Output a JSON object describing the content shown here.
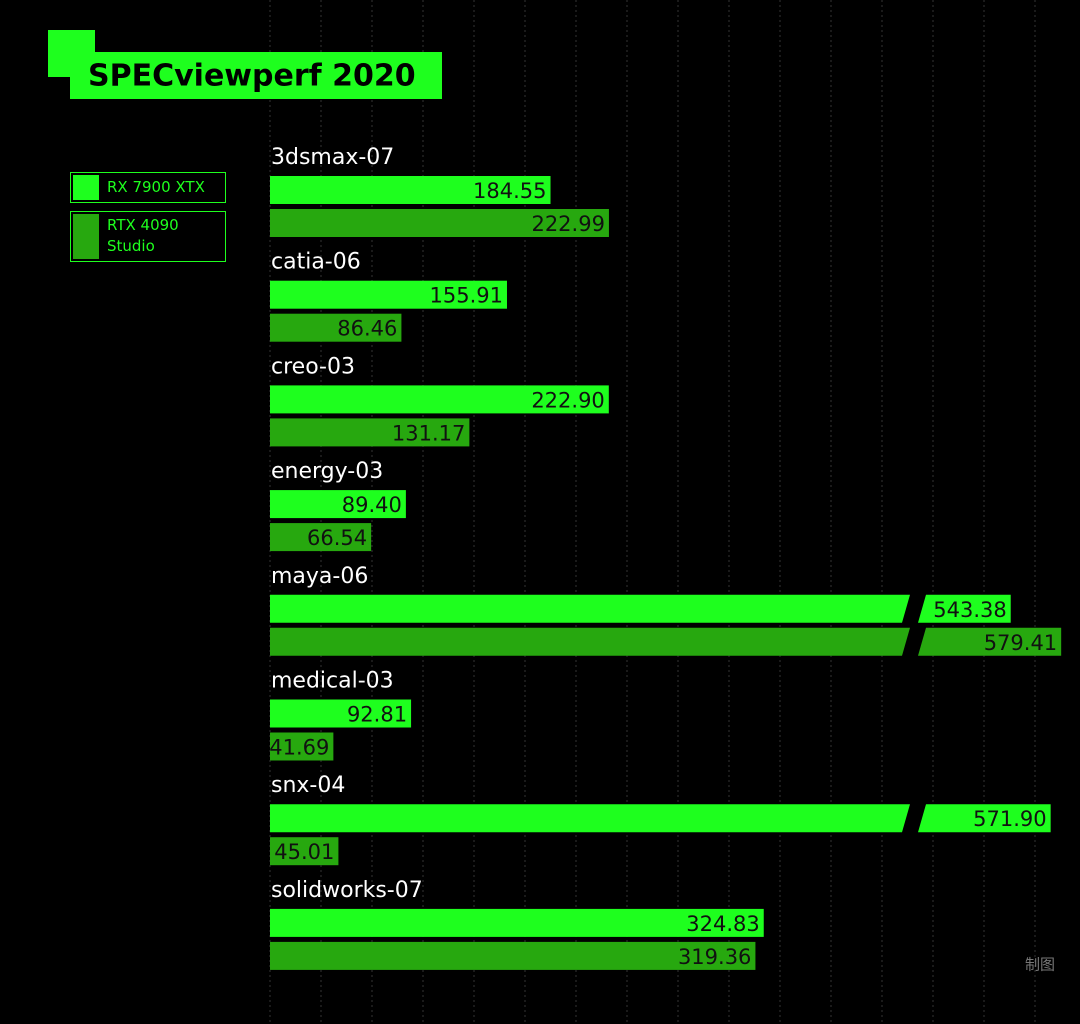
{
  "chart_data": {
    "type": "bar",
    "orientation": "horizontal",
    "title": "SPECviewperf 2020",
    "categories": [
      "3dsmax-07",
      "catia-06",
      "creo-03",
      "energy-03",
      "maya-06",
      "medical-03",
      "snx-04",
      "solidworks-07"
    ],
    "series": [
      {
        "name": "RX 7900 XTX",
        "color": "#1eff1e",
        "values": [
          184.55,
          155.91,
          222.9,
          89.4,
          543.38,
          92.81,
          571.9,
          324.83
        ],
        "value_labels": [
          "184.55",
          "155.91",
          "222.90",
          "89.40",
          "543.38",
          "92.81",
          "571.90",
          "324.83"
        ]
      },
      {
        "name": "RTX 4090 Studio",
        "color": "#27a80f",
        "values": [
          222.99,
          86.46,
          131.17,
          66.54,
          579.41,
          41.69,
          45.01,
          319.36
        ],
        "value_labels": [
          "222.99",
          "86.46",
          "131.17",
          "66.54",
          "579.41",
          "41.69",
          "45.01",
          "319.36"
        ]
      }
    ],
    "xlim": [
      0,
      500
    ],
    "grid": true,
    "watermark": "制图"
  }
}
